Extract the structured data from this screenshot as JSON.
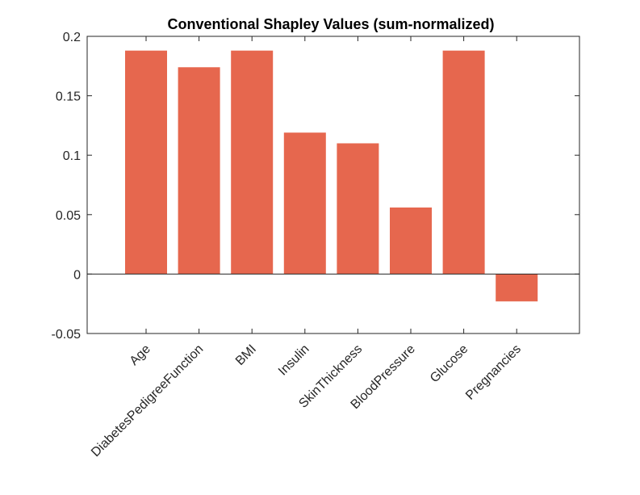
{
  "chart_data": {
    "type": "bar",
    "title": "Conventional Shapley Values (sum-normalized)",
    "xlabel": "",
    "ylabel": "",
    "categories": [
      "Age",
      "DiabetesPedigreeFunction",
      "BMI",
      "Insulin",
      "SkinThickness",
      "BloodPressure",
      "Glucose",
      "Pregnancies"
    ],
    "values": [
      0.188,
      0.174,
      0.188,
      0.119,
      0.11,
      0.056,
      0.188,
      -0.023
    ],
    "ylim": [
      -0.05,
      0.2
    ],
    "yticks": [
      -0.05,
      0,
      0.05,
      0.1,
      0.15,
      0.2
    ],
    "ytick_labels": [
      "-0.05",
      "0",
      "0.05",
      "0.1",
      "0.15",
      "0.2"
    ],
    "bar_color": "#e6674e",
    "grid": false
  }
}
